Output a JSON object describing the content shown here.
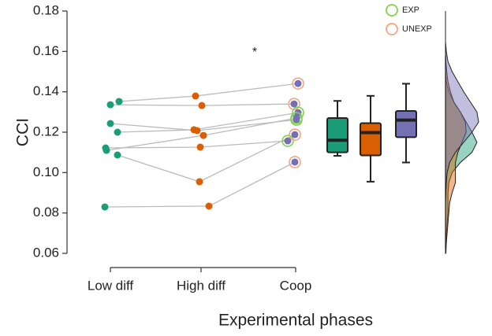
{
  "chart_data": {
    "type": "raincloud",
    "x_label": "Experimental phases",
    "y_label": "CCI",
    "annotation": "*",
    "categories": [
      "Low diff",
      "High diff",
      "Coop"
    ],
    "colors": [
      "#1b9e77",
      "#d95f02",
      "#7570b3"
    ],
    "ylim": [
      0.06,
      0.18
    ],
    "yticks": [
      {
        "value": 0.06,
        "label": "0.06"
      },
      {
        "value": 0.08,
        "label": "0.08"
      },
      {
        "value": 0.1,
        "label": "0.10"
      },
      {
        "value": 0.12,
        "label": "0.12"
      },
      {
        "value": 0.14,
        "label": "0.14"
      },
      {
        "value": 0.16,
        "label": "0.16"
      },
      {
        "value": 0.18,
        "label": "0.18"
      }
    ],
    "groups": [
      {
        "name": "EXP",
        "color": "#7fd34e"
      },
      {
        "name": "UNEXP",
        "color": "#f4a582"
      }
    ],
    "subjects": [
      {
        "group": 1,
        "values": [
          0.1352,
          0.1379,
          0.1441
        ]
      },
      {
        "group": 1,
        "values": [
          0.1336,
          0.1332,
          0.134
        ]
      },
      {
        "group": 0,
        "values": [
          0.1243,
          0.1208,
          0.1262
        ]
      },
      {
        "group": 0,
        "values": [
          0.12,
          0.1212,
          0.1297
        ]
      },
      {
        "group": 0,
        "values": [
          0.1122,
          0.1126,
          0.1157
        ]
      },
      {
        "group": 0,
        "values": [
          0.111,
          0.1184,
          0.127
        ]
      },
      {
        "group": 1,
        "values": [
          0.1087,
          0.0955,
          0.1188
        ]
      },
      {
        "group": 1,
        "values": [
          0.083,
          0.0834,
          0.1052
        ]
      }
    ],
    "boxes": [
      {
        "min": 0.1083,
        "q1": 0.11,
        "median": 0.116,
        "q3": 0.127,
        "max": 0.1355
      },
      {
        "min": 0.0955,
        "q1": 0.1085,
        "median": 0.1198,
        "q3": 0.1245,
        "max": 0.138
      },
      {
        "min": 0.105,
        "q1": 0.1175,
        "median": 0.126,
        "q3": 0.1305,
        "max": 0.144
      }
    ],
    "density_grid": [
      0.06,
      0.065,
      0.07,
      0.075,
      0.08,
      0.085,
      0.09,
      0.095,
      0.1,
      0.105,
      0.11,
      0.115,
      0.12,
      0.125,
      0.13,
      0.135,
      0.14,
      0.145,
      0.15,
      0.155,
      0.16,
      0.165,
      0.17,
      0.175,
      0.18
    ],
    "densities": [
      [
        0,
        0.5,
        1,
        2,
        3,
        3,
        3,
        4,
        8,
        18,
        32,
        38,
        32,
        25,
        18,
        10,
        4,
        1,
        0,
        0,
        0,
        0,
        0,
        0,
        0
      ],
      [
        0.5,
        1,
        2,
        3,
        4,
        5,
        8,
        12,
        12,
        12,
        15,
        20,
        25,
        24,
        18,
        10,
        6,
        3,
        1.5,
        0.5,
        0,
        0,
        0,
        0,
        0
      ],
      [
        0,
        0,
        0,
        0,
        0,
        0,
        0.5,
        1,
        2,
        5,
        12,
        22,
        32,
        40,
        38,
        30,
        22,
        15,
        8,
        3,
        1,
        0,
        0,
        0,
        0
      ]
    ]
  }
}
